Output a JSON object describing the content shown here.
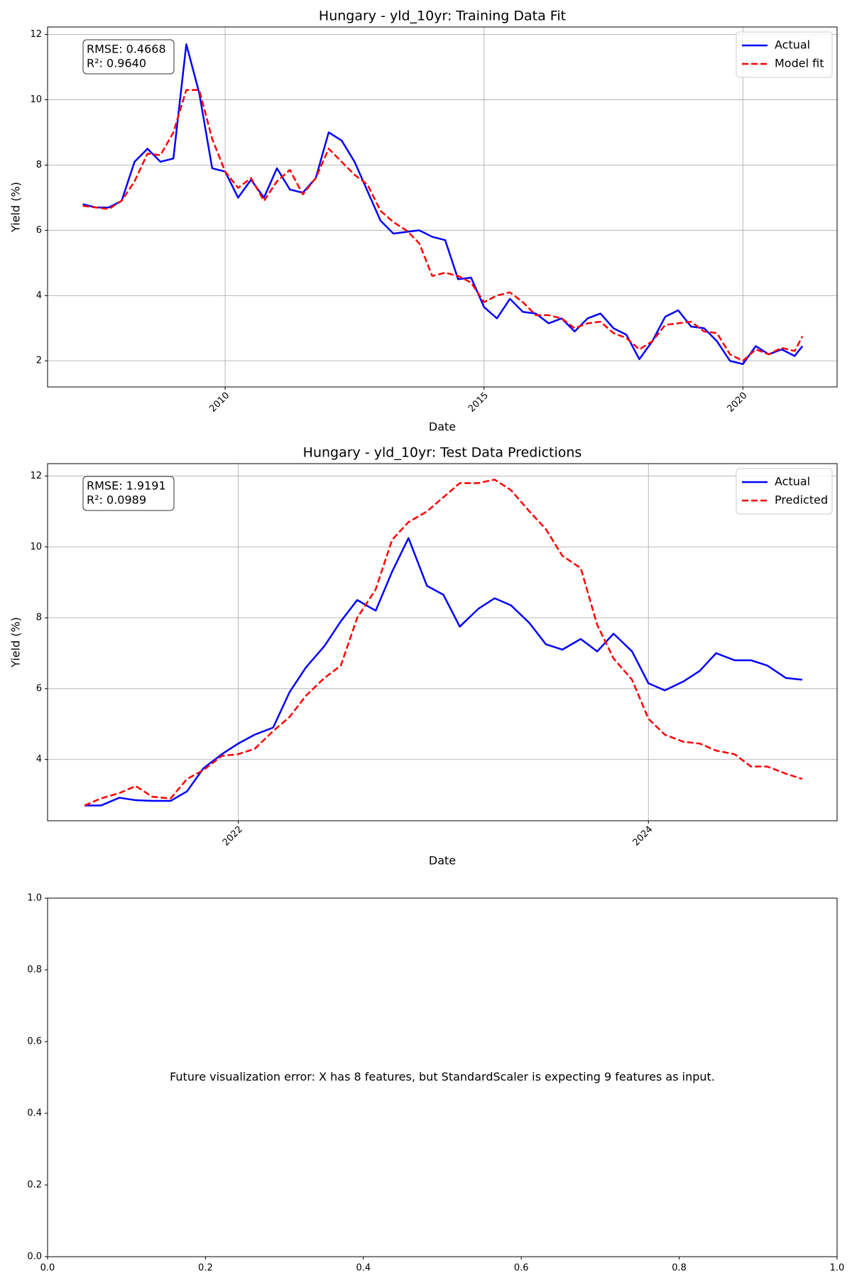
{
  "chart_data": [
    {
      "type": "line",
      "title": "Hungary - yld_10yr: Training Data Fit",
      "xlabel": "Date",
      "ylabel": "Yield (%)",
      "annotation": [
        "RMSE: 0.4668",
        "R²: 0.9640"
      ],
      "x": [
        2007.25,
        2007.5,
        2007.75,
        2008,
        2008.25,
        2008.5,
        2008.75,
        2009,
        2009.25,
        2009.5,
        2009.75,
        2010,
        2010.25,
        2010.5,
        2010.75,
        2011,
        2011.25,
        2011.5,
        2011.75,
        2012,
        2012.25,
        2012.5,
        2012.75,
        2013,
        2013.25,
        2013.5,
        2013.75,
        2014,
        2014.25,
        2014.5,
        2014.75,
        2015,
        2015.25,
        2015.5,
        2015.75,
        2016,
        2016.25,
        2016.5,
        2016.75,
        2017,
        2017.25,
        2017.5,
        2017.75,
        2018,
        2018.25,
        2018.5,
        2018.75,
        2019,
        2019.25,
        2019.5,
        2019.75,
        2020,
        2020.25,
        2020.5,
        2020.75,
        2021,
        2021.15
      ],
      "series": [
        {
          "name": "Actual",
          "color": "#0000ff",
          "linestyle": "solid",
          "values": [
            6.8,
            6.7,
            6.7,
            6.9,
            8.1,
            8.5,
            8.1,
            8.2,
            11.7,
            10.2,
            7.9,
            7.8,
            7.0,
            7.55,
            7.0,
            7.9,
            7.25,
            7.15,
            7.6,
            9.0,
            8.75,
            8.1,
            7.2,
            6.3,
            5.9,
            5.95,
            6.0,
            5.8,
            5.7,
            4.5,
            4.55,
            3.65,
            3.3,
            3.9,
            3.5,
            3.45,
            3.15,
            3.3,
            2.9,
            3.3,
            3.45,
            3.0,
            2.8,
            2.05,
            2.6,
            3.35,
            3.55,
            3.05,
            3.0,
            2.6,
            2.0,
            1.9,
            2.45,
            2.2,
            2.35,
            2.15,
            2.45
          ]
        },
        {
          "name": "Model fit",
          "color": "#ff0000",
          "linestyle": "dashed",
          "values": [
            6.75,
            6.7,
            6.65,
            6.9,
            7.5,
            8.35,
            8.3,
            9.0,
            10.3,
            10.3,
            8.8,
            7.8,
            7.3,
            7.6,
            6.9,
            7.5,
            7.85,
            7.1,
            7.6,
            8.5,
            8.1,
            7.7,
            7.4,
            6.6,
            6.25,
            6.0,
            5.6,
            4.6,
            4.7,
            4.6,
            4.4,
            3.8,
            4.0,
            4.1,
            3.8,
            3.4,
            3.4,
            3.3,
            3.0,
            3.15,
            3.2,
            2.85,
            2.7,
            2.35,
            2.6,
            3.1,
            3.15,
            3.2,
            2.9,
            2.85,
            2.2,
            2.0,
            2.35,
            2.2,
            2.4,
            2.3,
            2.75
          ]
        }
      ],
      "xlim": [
        2006.57,
        2021.82
      ],
      "xticks": [
        2010,
        2015,
        2020
      ],
      "xtick_rotation": 45,
      "ylim": [
        1.2,
        12.23
      ],
      "yticks": [
        2,
        4,
        6,
        8,
        10,
        12
      ],
      "grid": true,
      "legend": "upper right"
    },
    {
      "type": "line",
      "title": "Hungary - yld_10yr: Test Data Predictions",
      "xlabel": "Date",
      "ylabel": "Yield (%)",
      "annotation": [
        "RMSE: 1.9191",
        "R²: 0.0989"
      ],
      "x": [
        2021.25,
        2021.33,
        2021.42,
        2021.5,
        2021.58,
        2021.67,
        2021.75,
        2021.83,
        2021.92,
        2022,
        2022.08,
        2022.17,
        2022.25,
        2022.33,
        2022.42,
        2022.5,
        2022.58,
        2022.67,
        2022.75,
        2022.83,
        2022.92,
        2023,
        2023.08,
        2023.17,
        2023.25,
        2023.33,
        2023.42,
        2023.5,
        2023.58,
        2023.67,
        2023.75,
        2023.83,
        2023.92,
        2024,
        2024.08,
        2024.17,
        2024.25,
        2024.33,
        2024.42,
        2024.5,
        2024.58,
        2024.67,
        2024.75
      ],
      "series": [
        {
          "name": "Actual",
          "color": "#0000ff",
          "linestyle": "solid",
          "values": [
            2.7,
            2.7,
            2.92,
            2.85,
            2.83,
            2.83,
            3.1,
            3.75,
            4.15,
            4.45,
            4.7,
            4.9,
            5.9,
            6.6,
            7.2,
            7.9,
            8.5,
            8.2,
            9.3,
            10.25,
            8.9,
            8.65,
            7.75,
            8.25,
            8.55,
            8.35,
            7.85,
            7.25,
            7.1,
            7.4,
            7.05,
            7.55,
            7.05,
            6.15,
            5.95,
            6.2,
            6.5,
            7.0,
            6.8,
            6.8,
            6.65,
            6.3,
            6.25
          ]
        },
        {
          "name": "Predicted",
          "color": "#ff0000",
          "linestyle": "dashed",
          "values": [
            2.7,
            2.9,
            3.05,
            3.25,
            2.95,
            2.9,
            3.45,
            3.7,
            4.1,
            4.15,
            4.3,
            4.8,
            5.2,
            5.8,
            6.3,
            6.65,
            8.0,
            8.8,
            10.2,
            10.7,
            11.0,
            11.4,
            11.8,
            11.8,
            11.9,
            11.6,
            11.0,
            10.5,
            9.75,
            9.4,
            7.8,
            6.85,
            6.25,
            5.15,
            4.7,
            4.5,
            4.45,
            4.25,
            4.15,
            3.8,
            3.8,
            3.6,
            3.45
          ]
        }
      ],
      "xlim": [
        2021.07,
        2024.92
      ],
      "xticks": [
        2022,
        2024
      ],
      "xtick_rotation": 45,
      "ylim": [
        2.27,
        12.35
      ],
      "yticks": [
        4,
        6,
        8,
        10,
        12
      ],
      "grid": true,
      "legend": "upper right"
    },
    {
      "type": "text",
      "annotation": "Future visualization error: X has 8 features, but StandardScaler is expecting 9 features as input.",
      "xlim": [
        0,
        1
      ],
      "ylim": [
        0,
        1
      ],
      "xticks": [
        {
          "value": 0,
          "label": "0.0"
        },
        0.2,
        0.4,
        0.6,
        0.8,
        {
          "value": 1,
          "label": "1.0"
        }
      ],
      "yticks": [
        {
          "value": 0,
          "label": "0.0"
        },
        0.2,
        0.4,
        0.6,
        0.8,
        {
          "value": 1,
          "label": "1.0"
        }
      ],
      "grid": false
    }
  ]
}
